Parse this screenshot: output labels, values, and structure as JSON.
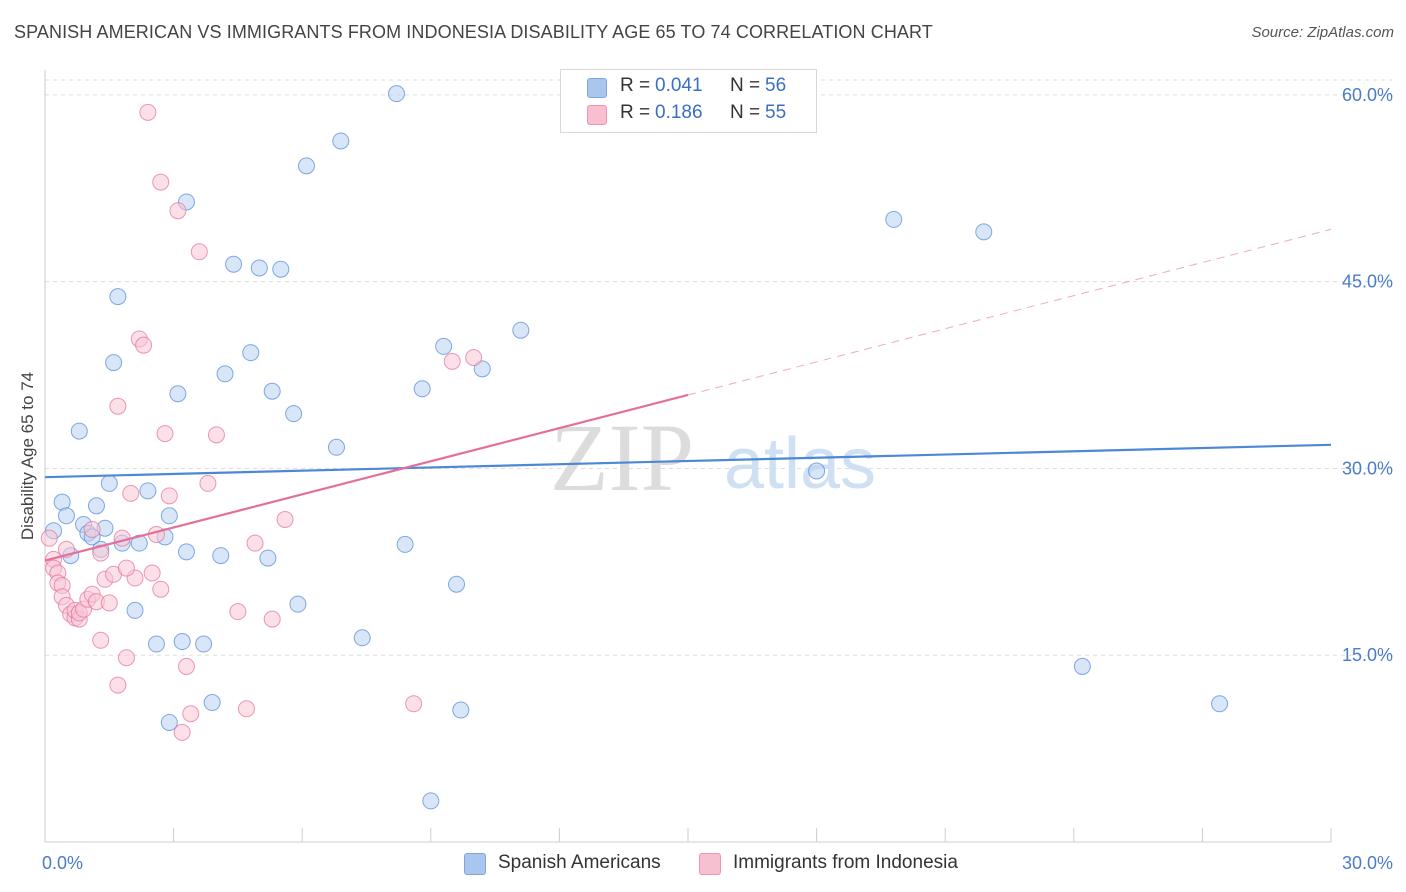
{
  "title": "SPANISH AMERICAN VS IMMIGRANTS FROM INDONESIA DISABILITY AGE 65 TO 74 CORRELATION CHART",
  "source": "Source: ZipAtlas.com",
  "watermark": {
    "zip": "ZIP",
    "atlas": "atlas"
  },
  "legend": {
    "rows": [
      {
        "r_label": "R =",
        "r_value": "0.041",
        "n_label": "N =",
        "n_value": "56",
        "color": "#a9c6ee",
        "border": "#7ea6dd"
      },
      {
        "r_label": "R =",
        "r_value": "0.186",
        "n_label": "N =",
        "n_value": "55",
        "color": "#f7bfd0",
        "border": "#ee93b0"
      }
    ]
  },
  "bottom_legend": {
    "items": [
      {
        "label": "Spanish Americans",
        "color": "#a9c6ee",
        "border": "#7ea6dd"
      },
      {
        "label": "Immigrants from Indonesia",
        "color": "#f7bfd0",
        "border": "#ee93b0"
      }
    ]
  },
  "chart_data": {
    "type": "scatter",
    "title": "SPANISH AMERICAN VS IMMIGRANTS FROM INDONESIA DISABILITY AGE 65 TO 74 CORRELATION CHART",
    "xlabel": "",
    "ylabel": "Disability Age 65 to 74",
    "xlim": [
      0,
      30
    ],
    "ylim": [
      0,
      62
    ],
    "x_tick_labels": [
      "0.0%",
      "30.0%"
    ],
    "y_ticks": [
      15,
      30,
      45,
      60
    ],
    "y_tick_labels": [
      "15.0%",
      "30.0%",
      "45.0%",
      "60.0%"
    ],
    "grid": true,
    "series": [
      {
        "name": "Spanish Americans",
        "color": "#4d88d6",
        "fill": "#b9d2f2",
        "trend": {
          "x": [
            0,
            30
          ],
          "y": [
            29.3,
            31.9
          ]
        },
        "points": [
          [
            0.2,
            25.0
          ],
          [
            0.4,
            27.3
          ],
          [
            0.5,
            26.2
          ],
          [
            0.6,
            23.0
          ],
          [
            0.8,
            33.0
          ],
          [
            0.9,
            25.5
          ],
          [
            1.0,
            24.8
          ],
          [
            1.1,
            24.5
          ],
          [
            1.2,
            27.0
          ],
          [
            1.3,
            23.5
          ],
          [
            1.4,
            25.2
          ],
          [
            1.5,
            28.8
          ],
          [
            1.6,
            38.5
          ],
          [
            1.7,
            43.8
          ],
          [
            1.8,
            24.0
          ],
          [
            2.1,
            18.6
          ],
          [
            2.2,
            24.0
          ],
          [
            2.4,
            28.2
          ],
          [
            2.6,
            15.9
          ],
          [
            2.8,
            24.5
          ],
          [
            2.9,
            9.6
          ],
          [
            2.9,
            26.2
          ],
          [
            3.1,
            36.0
          ],
          [
            3.2,
            16.1
          ],
          [
            3.3,
            51.4
          ],
          [
            3.3,
            23.3
          ],
          [
            3.7,
            15.9
          ],
          [
            3.9,
            11.2
          ],
          [
            4.1,
            23.0
          ],
          [
            4.2,
            37.6
          ],
          [
            4.4,
            46.4
          ],
          [
            4.8,
            39.3
          ],
          [
            5.0,
            46.1
          ],
          [
            5.2,
            22.8
          ],
          [
            5.3,
            36.2
          ],
          [
            5.5,
            46.0
          ],
          [
            5.8,
            34.4
          ],
          [
            5.9,
            19.1
          ],
          [
            6.1,
            54.3
          ],
          [
            6.8,
            31.7
          ],
          [
            6.9,
            56.3
          ],
          [
            7.4,
            16.4
          ],
          [
            8.2,
            60.1
          ],
          [
            8.4,
            23.9
          ],
          [
            8.8,
            36.4
          ],
          [
            9.0,
            3.3
          ],
          [
            9.3,
            39.8
          ],
          [
            9.6,
            20.7
          ],
          [
            9.7,
            10.6
          ],
          [
            10.2,
            38.0
          ],
          [
            11.1,
            41.1
          ],
          [
            18.0,
            29.8
          ],
          [
            19.8,
            50.0
          ],
          [
            21.9,
            49.0
          ],
          [
            24.2,
            14.1
          ],
          [
            27.4,
            11.1
          ]
        ]
      },
      {
        "name": "Immigrants from Indonesia",
        "color": "#e46f99",
        "fill": "#f7c7d6",
        "trend": {
          "x": [
            0,
            15
          ],
          "y": [
            22.6,
            35.9
          ]
        },
        "trend_extension": {
          "x": [
            15,
            30
          ],
          "y": [
            35.9,
            49.2
          ]
        },
        "points": [
          [
            0.1,
            24.4
          ],
          [
            0.2,
            22.7
          ],
          [
            0.2,
            22.0
          ],
          [
            0.3,
            21.6
          ],
          [
            0.3,
            20.8
          ],
          [
            0.4,
            20.6
          ],
          [
            0.4,
            19.7
          ],
          [
            0.5,
            19.0
          ],
          [
            0.6,
            18.3
          ],
          [
            0.7,
            18.0
          ],
          [
            0.7,
            18.6
          ],
          [
            0.8,
            17.9
          ],
          [
            0.8,
            18.4
          ],
          [
            0.9,
            18.7
          ],
          [
            1.0,
            19.5
          ],
          [
            1.1,
            19.9
          ],
          [
            1.1,
            25.1
          ],
          [
            1.2,
            19.3
          ],
          [
            1.3,
            16.2
          ],
          [
            1.3,
            23.2
          ],
          [
            1.4,
            21.1
          ],
          [
            1.5,
            19.2
          ],
          [
            1.6,
            21.5
          ],
          [
            1.7,
            35.0
          ],
          [
            1.7,
            12.6
          ],
          [
            1.8,
            24.4
          ],
          [
            1.9,
            14.8
          ],
          [
            2.0,
            28.0
          ],
          [
            2.1,
            21.2
          ],
          [
            2.2,
            40.4
          ],
          [
            2.3,
            39.9
          ],
          [
            2.4,
            58.6
          ],
          [
            2.5,
            21.6
          ],
          [
            2.6,
            24.7
          ],
          [
            2.7,
            53.0
          ],
          [
            2.8,
            32.8
          ],
          [
            2.9,
            27.8
          ],
          [
            3.1,
            50.7
          ],
          [
            3.2,
            8.8
          ],
          [
            3.3,
            14.1
          ],
          [
            3.4,
            10.3
          ],
          [
            3.6,
            47.4
          ],
          [
            3.8,
            28.8
          ],
          [
            4.0,
            32.7
          ],
          [
            4.5,
            18.5
          ],
          [
            4.7,
            10.7
          ],
          [
            4.9,
            24.0
          ],
          [
            5.3,
            17.9
          ],
          [
            5.6,
            25.9
          ],
          [
            8.6,
            11.1
          ],
          [
            9.5,
            38.6
          ],
          [
            10.0,
            38.9
          ],
          [
            0.5,
            23.5
          ],
          [
            1.9,
            22.0
          ],
          [
            2.7,
            20.3
          ]
        ]
      }
    ]
  }
}
